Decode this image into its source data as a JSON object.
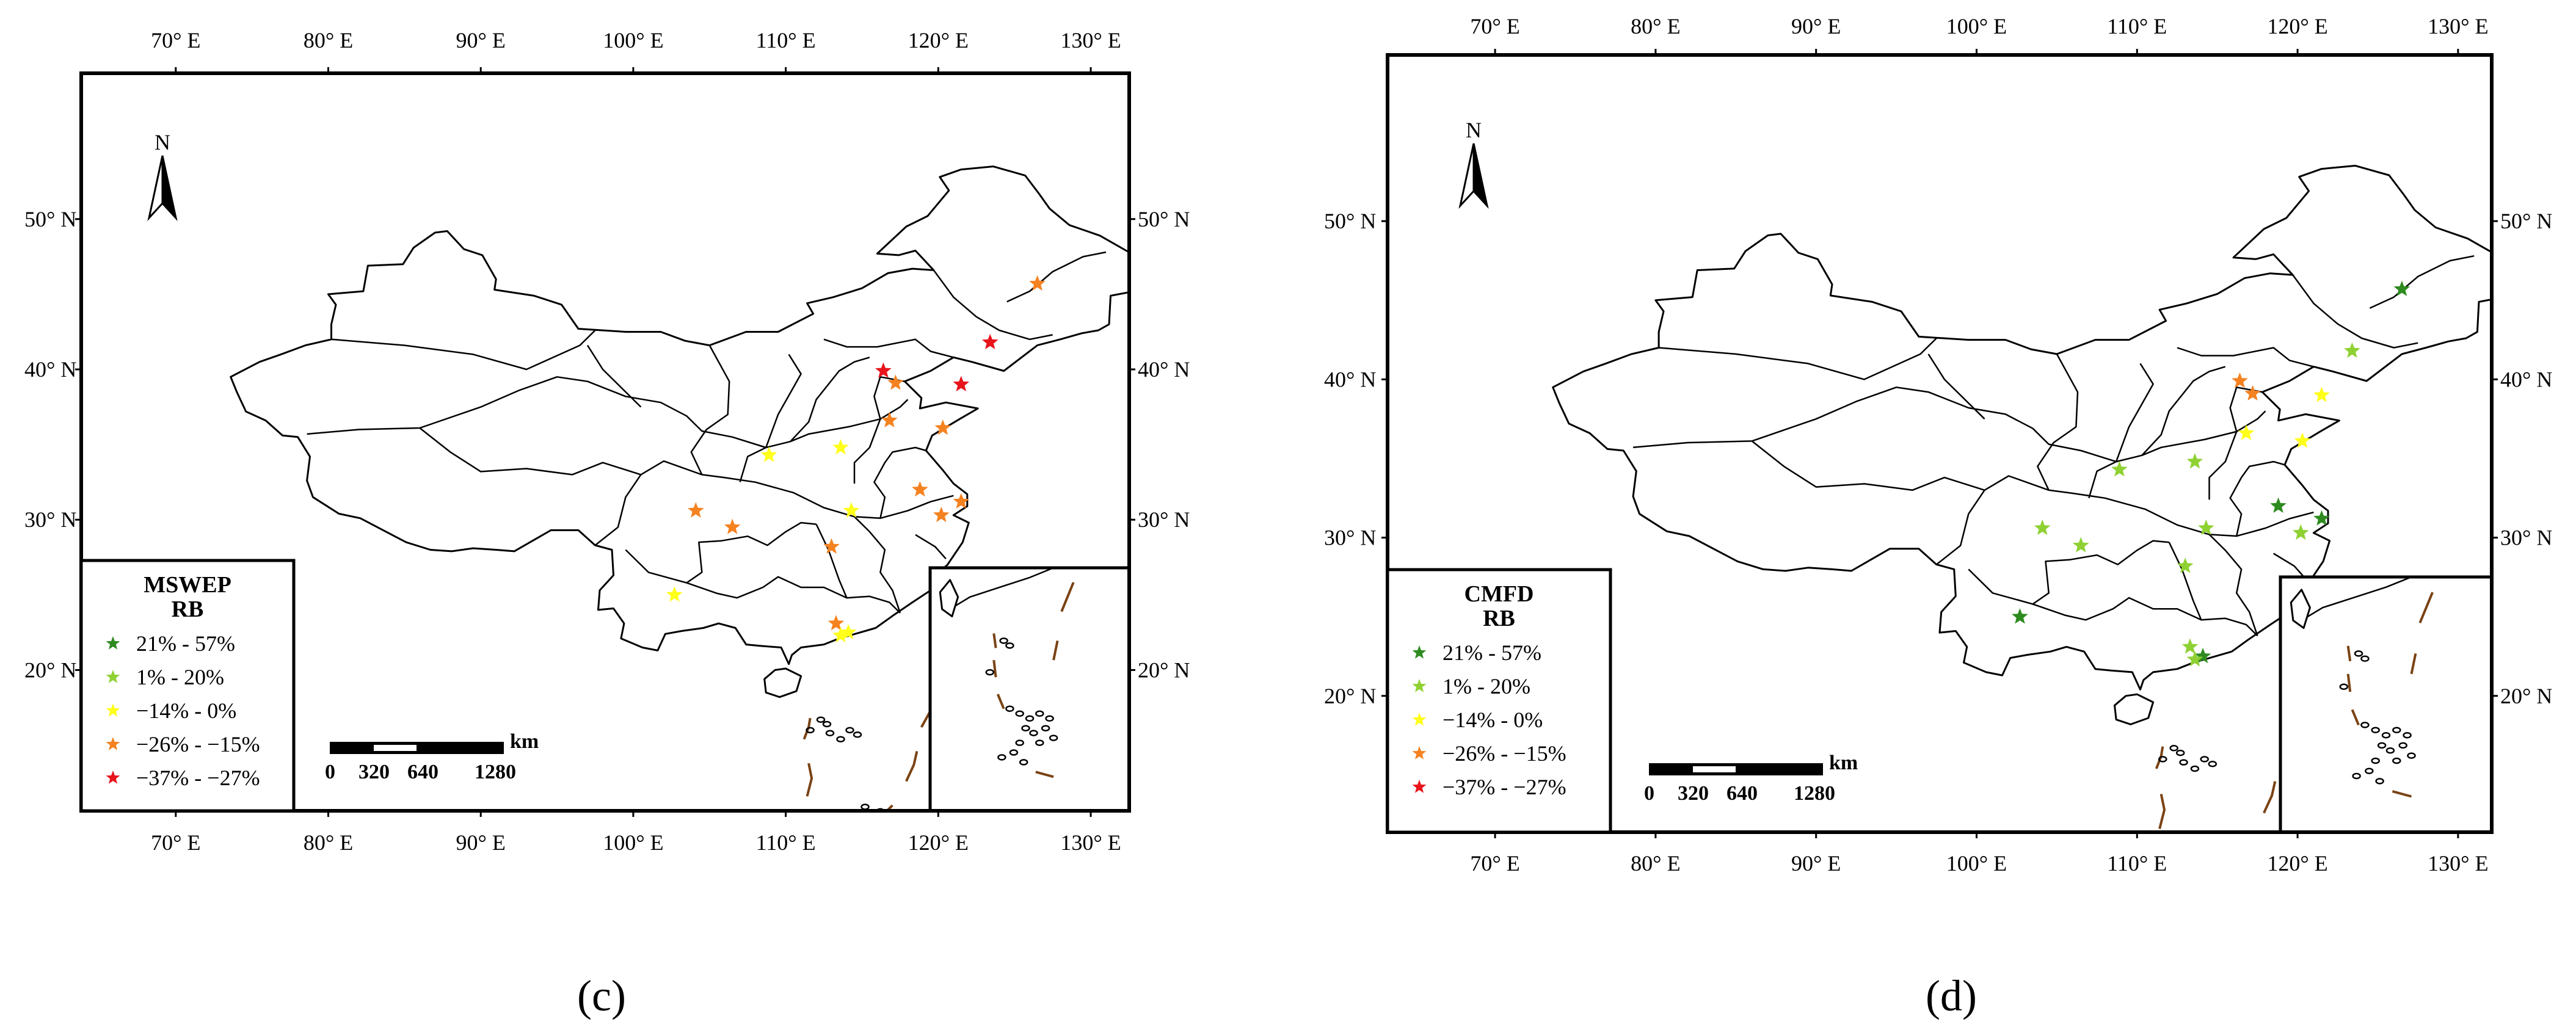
{
  "panels": [
    {
      "id": "c",
      "caption": "(c)",
      "legend_title": "MSWEP",
      "legend_subtitle": "RB",
      "stations": [
        {
          "lon": 126.5,
          "lat": 45.7,
          "cls": 3
        },
        {
          "lon": 123.4,
          "lat": 41.8,
          "cls": 4
        },
        {
          "lon": 121.5,
          "lat": 39.0,
          "cls": 4
        },
        {
          "lon": 116.4,
          "lat": 39.9,
          "cls": 4
        },
        {
          "lon": 117.2,
          "lat": 39.1,
          "cls": 3
        },
        {
          "lon": 116.8,
          "lat": 36.6,
          "cls": 3
        },
        {
          "lon": 120.3,
          "lat": 36.1,
          "cls": 3
        },
        {
          "lon": 108.9,
          "lat": 34.3,
          "cls": 2
        },
        {
          "lon": 113.6,
          "lat": 34.8,
          "cls": 2
        },
        {
          "lon": 104.1,
          "lat": 30.6,
          "cls": 3
        },
        {
          "lon": 106.5,
          "lat": 29.5,
          "cls": 3
        },
        {
          "lon": 114.3,
          "lat": 30.6,
          "cls": 2
        },
        {
          "lon": 118.8,
          "lat": 32.0,
          "cls": 3
        },
        {
          "lon": 121.5,
          "lat": 31.2,
          "cls": 3
        },
        {
          "lon": 120.2,
          "lat": 30.3,
          "cls": 3
        },
        {
          "lon": 113.0,
          "lat": 28.2,
          "cls": 3
        },
        {
          "lon": 102.7,
          "lat": 25.0,
          "cls": 2
        },
        {
          "lon": 113.3,
          "lat": 23.1,
          "cls": 3
        },
        {
          "lon": 114.1,
          "lat": 22.5,
          "cls": 2
        },
        {
          "lon": 113.6,
          "lat": 22.3,
          "cls": 2
        }
      ]
    },
    {
      "id": "d",
      "caption": "(d)",
      "legend_title": "CMFD",
      "legend_subtitle": "RB",
      "stations": [
        {
          "lon": 126.5,
          "lat": 45.7,
          "cls": 0
        },
        {
          "lon": 123.4,
          "lat": 41.8,
          "cls": 1
        },
        {
          "lon": 121.5,
          "lat": 39.0,
          "cls": 2
        },
        {
          "lon": 116.4,
          "lat": 39.9,
          "cls": 3
        },
        {
          "lon": 117.2,
          "lat": 39.1,
          "cls": 3
        },
        {
          "lon": 116.8,
          "lat": 36.6,
          "cls": 2
        },
        {
          "lon": 120.3,
          "lat": 36.1,
          "cls": 2
        },
        {
          "lon": 108.9,
          "lat": 34.3,
          "cls": 1
        },
        {
          "lon": 113.6,
          "lat": 34.8,
          "cls": 1
        },
        {
          "lon": 104.1,
          "lat": 30.6,
          "cls": 1
        },
        {
          "lon": 106.5,
          "lat": 29.5,
          "cls": 1
        },
        {
          "lon": 114.3,
          "lat": 30.6,
          "cls": 1
        },
        {
          "lon": 118.8,
          "lat": 32.0,
          "cls": 0
        },
        {
          "lon": 121.5,
          "lat": 31.2,
          "cls": 0
        },
        {
          "lon": 120.2,
          "lat": 30.3,
          "cls": 1
        },
        {
          "lon": 113.0,
          "lat": 28.2,
          "cls": 1
        },
        {
          "lon": 102.7,
          "lat": 25.0,
          "cls": 0
        },
        {
          "lon": 113.3,
          "lat": 23.1,
          "cls": 1
        },
        {
          "lon": 114.1,
          "lat": 22.5,
          "cls": 0
        },
        {
          "lon": 113.6,
          "lat": 22.3,
          "cls": 1
        }
      ]
    }
  ],
  "legend_items": [
    {
      "label": "21% - 57%",
      "color": "#2e8b1f"
    },
    {
      "label": "1% - 20%",
      "color": "#8fd132"
    },
    {
      "label": "−14% - 0%",
      "color": "#ffff1a"
    },
    {
      "label": "−26% - −15%",
      "color": "#f58220"
    },
    {
      "label": "−37% - −27%",
      "color": "#e8141b"
    }
  ],
  "lon_ticks": [
    "70° E",
    "80° E",
    "90° E",
    "100° E",
    "110° E",
    "120° E",
    "130° E"
  ],
  "lat_ticks": [
    "20° N",
    "30° N",
    "40° N",
    "50° N"
  ],
  "lon_values": [
    70,
    80,
    90,
    100,
    110,
    120,
    130
  ],
  "lat_values": [
    20,
    30,
    40,
    50
  ],
  "north_label": "N",
  "scale": {
    "unit": "km",
    "labels": [
      "0",
      "320",
      "640",
      "1280"
    ]
  }
}
